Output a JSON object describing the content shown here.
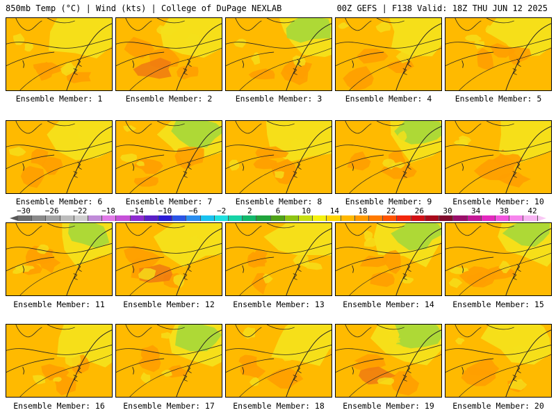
{
  "header": {
    "left_title": "850mb Temp (°C) | Wind (kts) | College of DuPage NEXLAB",
    "right_title": "00Z GEFS | F138 Valid: 18Z THU JUN 12 2025"
  },
  "colorbar": {
    "tick_labels": [
      "-30",
      "-26",
      "-22",
      "-18",
      "-14",
      "-10",
      "-6",
      "-2",
      "2",
      "6",
      "10",
      "14",
      "18",
      "22",
      "26",
      "30",
      "34",
      "38",
      "42"
    ],
    "colors": [
      "#6e6e6e",
      "#8a8a8a",
      "#a3a3a3",
      "#bcbcbc",
      "#cfcfcf",
      "#c08bd8",
      "#e17ae8",
      "#c651d8",
      "#8f2bd0",
      "#5a1fc6",
      "#2a1bd6",
      "#2a54e6",
      "#2a8ef0",
      "#19c2f0",
      "#1fe0e0",
      "#16d3a6",
      "#12b86a",
      "#20a43c",
      "#4fa318",
      "#8ec413",
      "#c8df12",
      "#f5f10e",
      "#ffd400",
      "#ffb800",
      "#ff9a00",
      "#ff7a00",
      "#ff5400",
      "#f2270c",
      "#d10f14",
      "#a80a1b",
      "#800a2c",
      "#9a0f6a",
      "#c41896",
      "#e329bf",
      "#f254de",
      "#f685ec",
      "#f7b3f3"
    ],
    "left_arrow_color": "#585858",
    "right_arrow_color": "#f9c8f5"
  },
  "panels": [
    {
      "label": "Ensemble Member: 1"
    },
    {
      "label": "Ensemble Member: 2"
    },
    {
      "label": "Ensemble Member: 3"
    },
    {
      "label": "Ensemble Member: 4"
    },
    {
      "label": "Ensemble Member: 5"
    },
    {
      "label": "Ensemble Member: 6"
    },
    {
      "label": "Ensemble Member: 7"
    },
    {
      "label": "Ensemble Member: 8"
    },
    {
      "label": "Ensemble Member: 9"
    },
    {
      "label": "Ensemble Member: 10"
    },
    {
      "label": "Ensemble Member: 11"
    },
    {
      "label": "Ensemble Member: 12"
    },
    {
      "label": "Ensemble Member: 13"
    },
    {
      "label": "Ensemble Member: 14"
    },
    {
      "label": "Ensemble Member: 15"
    },
    {
      "label": "Ensemble Member: 16"
    },
    {
      "label": "Ensemble Member: 17"
    },
    {
      "label": "Ensemble Member: 18"
    },
    {
      "label": "Ensemble Member: 19"
    },
    {
      "label": "Ensemble Member: 20"
    }
  ],
  "map_colors": {
    "base": "#ffba00",
    "warm": "#ff9f00",
    "hot": "#f07a10",
    "cool": "#f5e01a",
    "cooler": "#d8e22a",
    "green": "#a6d83a",
    "outline": "#222222"
  }
}
